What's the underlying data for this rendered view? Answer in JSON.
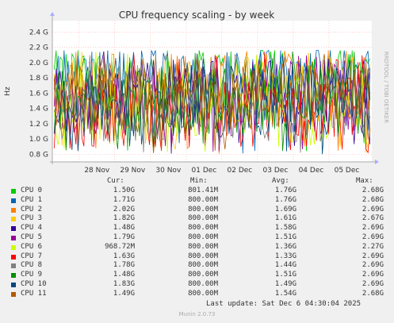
{
  "chart_data": {
    "type": "line",
    "title": "CPU frequency scaling - by week",
    "ylabel": "Hz",
    "side_label": "RRDTOOL / TOBI OETIKER",
    "ylim": [
      0.7,
      2.55
    ],
    "yticks": [
      "0.8 G",
      "1.0 G",
      "1.2 G",
      "1.4 G",
      "1.6 G",
      "1.8 G",
      "2.0 G",
      "2.2 G",
      "2.4 G"
    ],
    "ytick_values": [
      0.8,
      1.0,
      1.2,
      1.4,
      1.6,
      1.8,
      2.0,
      2.2,
      2.4
    ],
    "x_ticks": [
      "28 Nov",
      "29 Nov",
      "30 Nov",
      "01 Dec",
      "02 Dec",
      "03 Dec",
      "04 Dec",
      "05 Dec"
    ],
    "x_tick_days": [
      1,
      2,
      3,
      4,
      5,
      6,
      7,
      8
    ],
    "x_range_days": [
      0.25,
      9.2
    ],
    "grid": true,
    "series": [
      {
        "name": "CPU 0",
        "color": "#00cc00",
        "cur": "1.50G",
        "min": "801.41M",
        "avg": "1.76G",
        "max": "2.68G"
      },
      {
        "name": "CPU 1",
        "color": "#0066b3",
        "cur": "1.71G",
        "min": "800.00M",
        "avg": "1.76G",
        "max": "2.68G"
      },
      {
        "name": "CPU 2",
        "color": "#ff8000",
        "cur": "2.02G",
        "min": "800.00M",
        "avg": "1.69G",
        "max": "2.69G"
      },
      {
        "name": "CPU 3",
        "color": "#ffcc00",
        "cur": "1.82G",
        "min": "800.00M",
        "avg": "1.61G",
        "max": "2.67G"
      },
      {
        "name": "CPU 4",
        "color": "#330099",
        "cur": "1.48G",
        "min": "800.00M",
        "avg": "1.58G",
        "max": "2.69G"
      },
      {
        "name": "CPU 5",
        "color": "#990099",
        "cur": "1.79G",
        "min": "800.00M",
        "avg": "1.51G",
        "max": "2.69G"
      },
      {
        "name": "CPU 6",
        "color": "#ccff00",
        "cur": "968.72M",
        "min": "800.00M",
        "avg": "1.36G",
        "max": "2.27G"
      },
      {
        "name": "CPU 7",
        "color": "#ff0000",
        "cur": "1.63G",
        "min": "800.00M",
        "avg": "1.33G",
        "max": "2.69G"
      },
      {
        "name": "CPU 8",
        "color": "#808080",
        "cur": "1.78G",
        "min": "800.00M",
        "avg": "1.44G",
        "max": "2.69G"
      },
      {
        "name": "CPU 9",
        "color": "#008f00",
        "cur": "1.48G",
        "min": "800.00M",
        "avg": "1.51G",
        "max": "2.69G"
      },
      {
        "name": "CPU 10",
        "color": "#00487d",
        "cur": "1.83G",
        "min": "800.00M",
        "avg": "1.49G",
        "max": "2.69G"
      },
      {
        "name": "CPU 11",
        "color": "#b35a00",
        "cur": "1.49G",
        "min": "800.00M",
        "avg": "1.54G",
        "max": "2.68G"
      }
    ]
  },
  "legend_header": {
    "cur": "Cur:",
    "min": "Min:",
    "avg": "Avg:",
    "max": "Max:"
  },
  "footer": {
    "last_update": "Last update: Sat Dec  6 04:30:04 2025",
    "munin": "Munin 2.0.73"
  }
}
